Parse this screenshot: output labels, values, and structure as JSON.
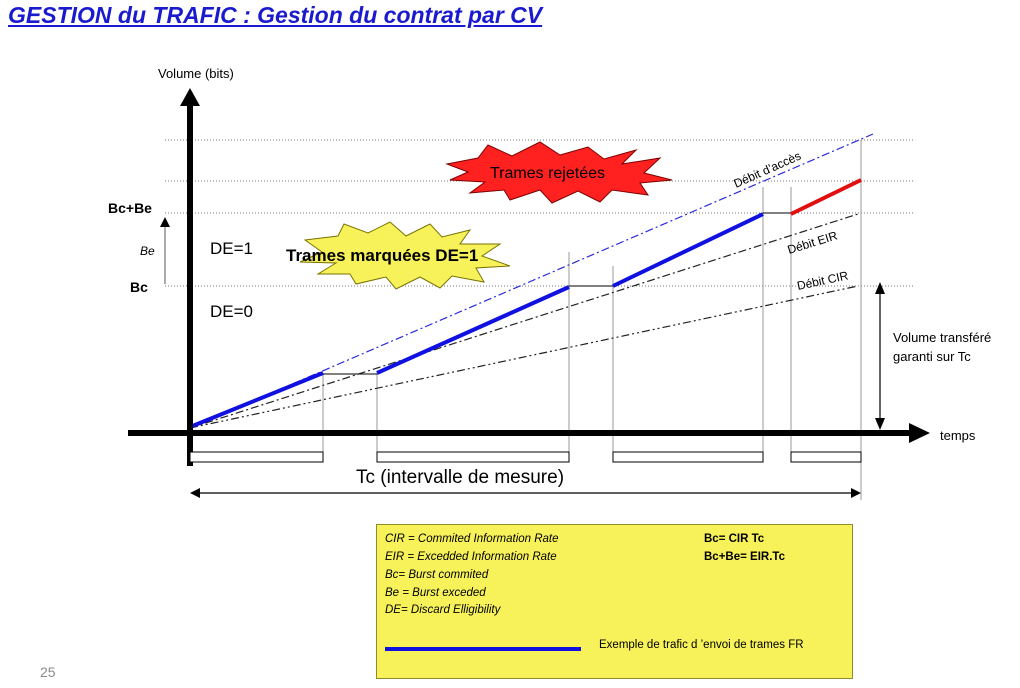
{
  "title": "GESTION du TRAFIC : Gestion du contrat par CV",
  "axes": {
    "y_label": "Volume (bits)",
    "x_label": "temps",
    "tick_bc_be": "Bc+Be",
    "tick_be": "Be",
    "tick_bc": "Bc"
  },
  "zones": {
    "de1": "DE=1",
    "de0": "DE=0"
  },
  "bursts": {
    "rejected": "Trames rejetées",
    "marked": "Trames marquées DE=1"
  },
  "rates": {
    "access": "Débit d’accès",
    "eir": "Débit EIR",
    "cir": "Débit CIR"
  },
  "guaranteed": {
    "line1": "Volume transféré",
    "line2": "garanti sur  Tc"
  },
  "interval_label": "Tc (intervalle de mesure)",
  "legend": {
    "left": [
      "CIR = Commited Information Rate",
      "EIR = Excedded Information Rate",
      "Bc= Burst commited",
      "Be = Burst exceded",
      "DE= Discard Elligibility"
    ],
    "right": [
      "Bc= CIR Tc",
      "Bc+Be= EIR.Tc"
    ],
    "example": "Exemple de trafic d ’envoi de trames FR"
  },
  "colors": {
    "title": "#1a1acf",
    "traffic_line": "#1010e0",
    "rejected_line": "#e01010",
    "rejected_burst": "#ff2020",
    "marked_burst": "#f7f25a",
    "legend_bg": "#f7f25a"
  },
  "page_number": "25"
}
